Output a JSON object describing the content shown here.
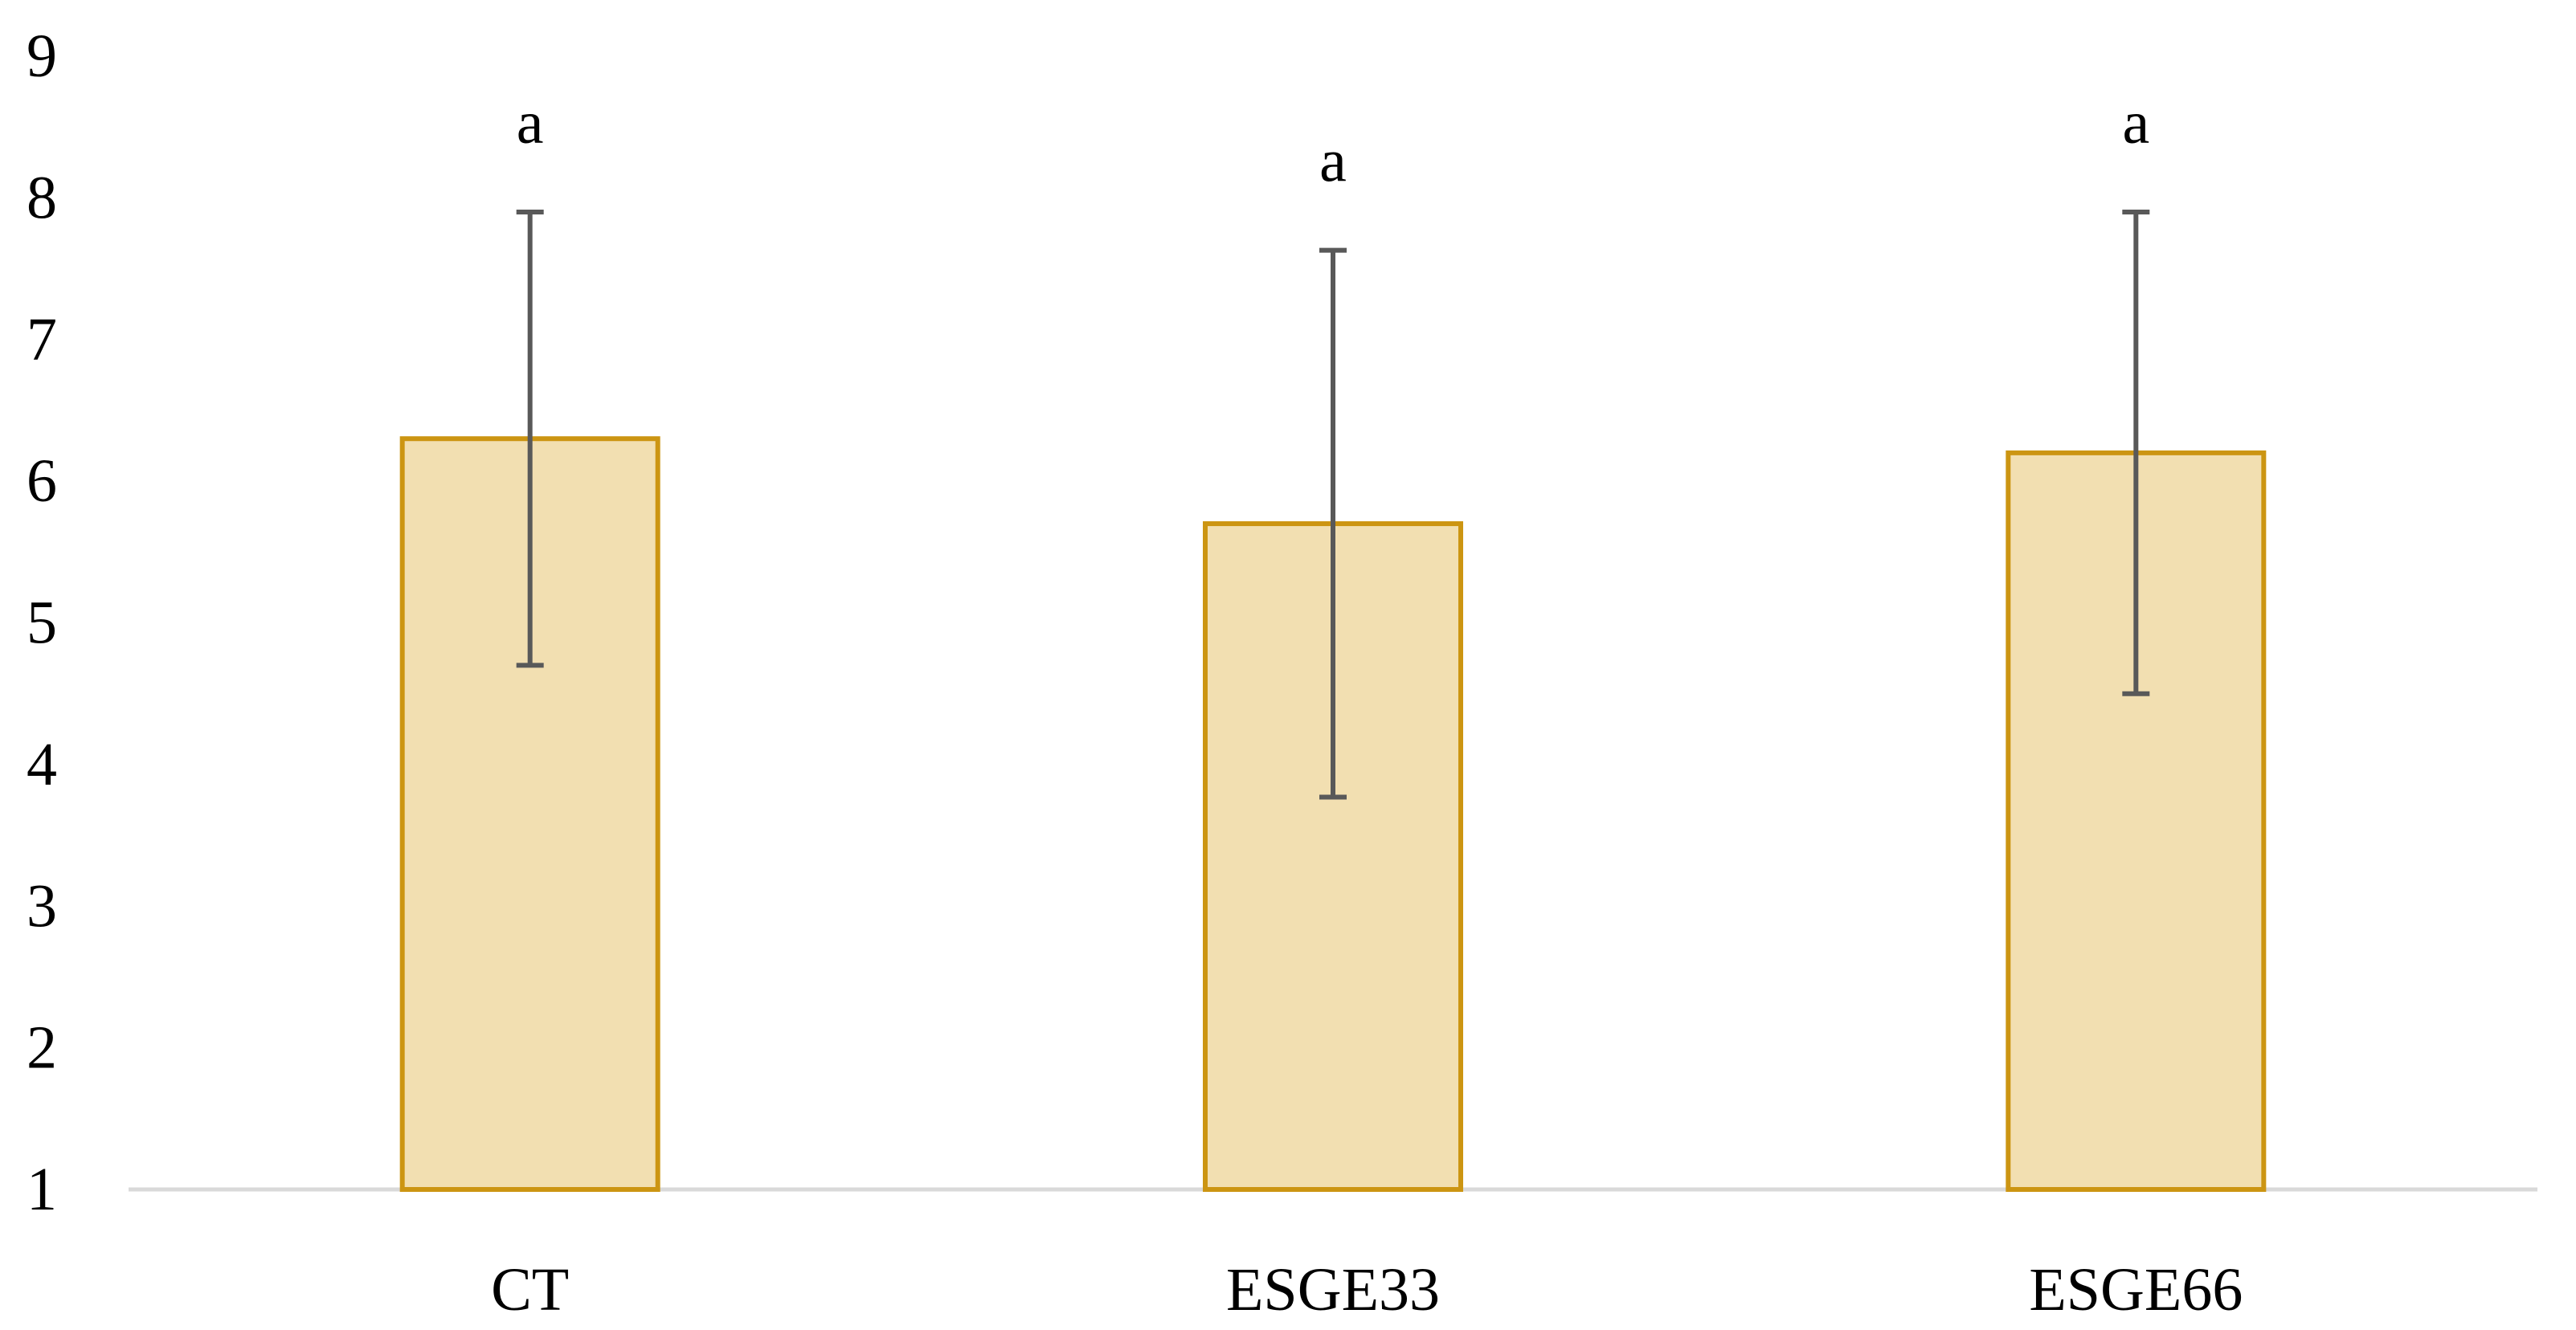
{
  "chart_data": {
    "type": "bar",
    "categories": [
      "CT",
      "ESGE33",
      "ESGE66"
    ],
    "values": [
      6.3,
      5.7,
      6.2
    ],
    "error_upper": [
      7.9,
      7.63,
      7.9
    ],
    "error_lower": [
      4.7,
      3.77,
      4.5
    ],
    "significance_labels": [
      "a",
      "a",
      "a"
    ],
    "ylim": [
      1,
      9
    ],
    "yticks": [
      "1",
      "2",
      "3",
      "4",
      "5",
      "6",
      "7",
      "8",
      "9"
    ],
    "title": "",
    "xlabel": "",
    "ylabel": "",
    "grid": false,
    "legend": "none",
    "colors": {
      "bar_fill": "#F2DFB1",
      "bar_stroke": "#CC9512",
      "error_bar": "#595959",
      "axis": "#D9D9D9"
    }
  }
}
